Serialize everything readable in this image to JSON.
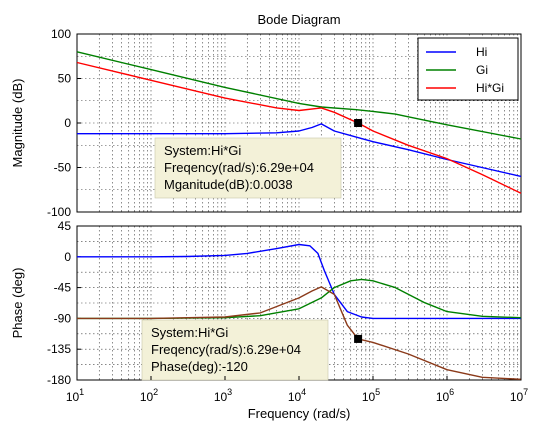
{
  "chart_data": {
    "type": "line",
    "title": "Bode Diagram",
    "xlabel": "Frequency  (rad/s)",
    "xscale": "log",
    "xlim": [
      10,
      10000000
    ],
    "x_ticks": [
      {
        "value": 10,
        "mantissa": "10",
        "exp": "1"
      },
      {
        "value": 100,
        "mantissa": "10",
        "exp": "2"
      },
      {
        "value": 1000,
        "mantissa": "10",
        "exp": "3"
      },
      {
        "value": 10000,
        "mantissa": "10",
        "exp": "4"
      },
      {
        "value": 100000,
        "mantissa": "10",
        "exp": "5"
      },
      {
        "value": 1000000,
        "mantissa": "10",
        "exp": "6"
      },
      {
        "value": 10000000,
        "mantissa": "10",
        "exp": "7"
      }
    ],
    "grid": true,
    "legend_position": "top-right",
    "colors": {
      "Hi": "#0000ff",
      "Gi": "#008000",
      "Hi*Gi": "#ff0000",
      "phase_product": "#8b3a1a"
    },
    "panels": [
      {
        "id": "magnitude",
        "ylabel": "Magnitude (dB)",
        "ylim": [
          -100,
          100
        ],
        "y_ticks": [
          100,
          50,
          0,
          -50,
          -100
        ],
        "legend": [
          "Hi",
          "Gi",
          "Hi*Gi"
        ],
        "series": [
          {
            "name": "Hi",
            "x": [
              10,
              100,
              1000,
              5000,
              10000,
              15000,
              20000,
              30000,
              60000,
              100000,
              300000,
              1000000,
              10000000
            ],
            "y": [
              -12,
              -12,
              -12,
              -11,
              -9,
              -5,
              -1,
              -9,
              -16,
              -21,
              -30,
              -41,
              -60
            ]
          },
          {
            "name": "Gi",
            "x": [
              10,
              100,
              1000,
              10000,
              20000,
              60000,
              100000,
              200000,
              300000,
              1000000,
              10000000
            ],
            "y": [
              80,
              60,
              40,
              22,
              18,
              15,
              13,
              10,
              7,
              -2,
              -18
            ]
          },
          {
            "name": "Hi*Gi",
            "x": [
              10,
              100,
              1000,
              5000,
              10000,
              20000,
              30000,
              62900,
              100000,
              300000,
              1000000,
              3000000,
              10000000
            ],
            "y": [
              68,
              48,
              28,
              17,
              14,
              17,
              12,
              0,
              -9,
              -25,
              -40,
              -58,
              -79
            ]
          }
        ],
        "datatip": {
          "x": 62900,
          "y": 0.0038,
          "lines": [
            "System:Hi*Gi",
            "Freqency(rad/s):6.29e+04",
            "Mganitude(dB):0.0038"
          ]
        }
      },
      {
        "id": "phase",
        "ylabel": "Phase (deg)",
        "ylim": [
          -180,
          45
        ],
        "y_ticks": [
          45,
          0,
          -45,
          -90,
          -135,
          -180
        ],
        "series": [
          {
            "name": "Hi",
            "x": [
              10,
              100,
              300,
              1000,
              2000,
              5000,
              10000,
              14000,
              18000,
              22000,
              30000,
              45000,
              70000,
              100000,
              200000,
              10000000
            ],
            "y": [
              0,
              0,
              0.5,
              2,
              5,
              12,
              18,
              16,
              5,
              -20,
              -55,
              -80,
              -88,
              -90,
              -90,
              -90
            ]
          },
          {
            "name": "Gi",
            "x": [
              10,
              100,
              1000,
              3000,
              10000,
              20000,
              30000,
              50000,
              70000,
              100000,
              200000,
              500000,
              1000000,
              3000000,
              10000000
            ],
            "y": [
              -90,
              -90,
              -89,
              -86,
              -76,
              -60,
              -45,
              -35,
              -33,
              -35,
              -45,
              -67,
              -80,
              -87,
              -89
            ]
          },
          {
            "name": "Hi*Gi",
            "x": [
              10,
              100,
              1000,
              3000,
              10000,
              15000,
              20000,
              30000,
              45000,
              62900,
              100000,
              300000,
              1000000,
              3000000,
              10000000
            ],
            "y": [
              -90,
              -90,
              -88,
              -82,
              -60,
              -50,
              -44,
              -55,
              -100,
              -120,
              -125,
              -142,
              -165,
              -176,
              -179
            ]
          }
        ],
        "datatip": {
          "x": 62900,
          "y": -120,
          "lines": [
            "System:Hi*Gi",
            "Freqency(rad/s):6.29e+04",
            "Phase(deg):-120"
          ]
        }
      }
    ]
  }
}
